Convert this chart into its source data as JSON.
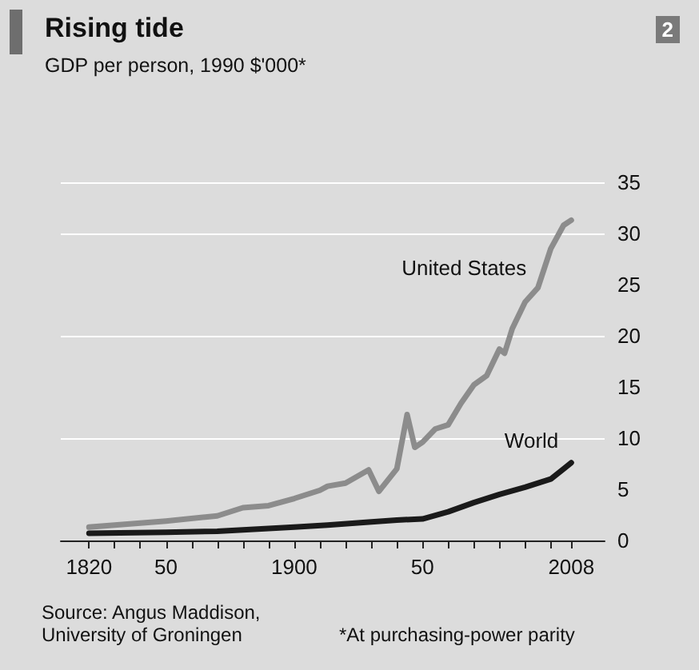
{
  "chart_data": {
    "type": "line",
    "title": "Rising tide",
    "subtitle": "GDP per person, 1990 $'000*",
    "annotations": [
      "2",
      "Source: Angus Maddison,\nUniversity of Groningen",
      "*At purchasing-power parity"
    ],
    "series": [
      {
        "name": "United States",
        "color": "#8c8c8c",
        "x": [
          1820,
          1850,
          1870,
          1880,
          1890,
          1900,
          1910,
          1913,
          1920,
          1929,
          1933,
          1940,
          1944,
          1947,
          1950,
          1955,
          1960,
          1965,
          1970,
          1975,
          1980,
          1982,
          1985,
          1990,
          1995,
          2000,
          2005,
          2008
        ],
        "values": [
          1.3,
          1.9,
          2.4,
          3.2,
          3.4,
          4.1,
          4.9,
          5.3,
          5.6,
          6.9,
          4.8,
          7.0,
          12.3,
          9.1,
          9.6,
          10.9,
          11.3,
          13.4,
          15.2,
          16.1,
          18.7,
          18.3,
          20.7,
          23.3,
          24.7,
          28.5,
          30.8,
          31.3
        ]
      },
      {
        "name": "World",
        "color": "#1a1a1a",
        "x": [
          1820,
          1850,
          1870,
          1900,
          1913,
          1929,
          1940,
          1950,
          1960,
          1970,
          1980,
          1990,
          2000,
          2005,
          2008
        ],
        "values": [
          0.7,
          0.8,
          0.9,
          1.3,
          1.5,
          1.8,
          2.0,
          2.1,
          2.8,
          3.7,
          4.5,
          5.2,
          6.0,
          7.0,
          7.6
        ]
      }
    ],
    "xlim": [
      1809,
      2021
    ],
    "xticks": [
      1820,
      {
        "value": 1830,
        "label": null
      },
      {
        "value": 1840,
        "label": null
      },
      {
        "value": 1850,
        "label": "50"
      },
      {
        "value": 1860,
        "label": null
      },
      {
        "value": 1870,
        "label": null
      },
      {
        "value": 1880,
        "label": null
      },
      {
        "value": 1890,
        "label": null
      },
      1900,
      {
        "value": 1910,
        "label": null
      },
      {
        "value": 1920,
        "label": null
      },
      {
        "value": 1930,
        "label": null
      },
      {
        "value": 1940,
        "label": null
      },
      {
        "value": 1950,
        "label": "50"
      },
      {
        "value": 1960,
        "label": null
      },
      {
        "value": 1970,
        "label": null
      },
      {
        "value": 1980,
        "label": null
      },
      {
        "value": 1990,
        "label": null
      },
      {
        "value": 2000,
        "label": null
      },
      2008
    ],
    "ylim": [
      0,
      35
    ],
    "yticks": [
      0,
      5,
      10,
      15,
      20,
      25,
      30,
      35
    ],
    "grid": "y",
    "legend": false,
    "marker": "none",
    "line_style": "solid"
  }
}
